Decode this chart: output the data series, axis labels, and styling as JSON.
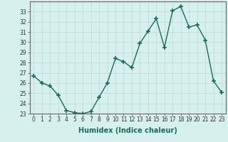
{
  "x": [
    0,
    1,
    2,
    3,
    4,
    5,
    6,
    7,
    8,
    9,
    10,
    11,
    12,
    13,
    14,
    15,
    16,
    17,
    18,
    19,
    20,
    21,
    22,
    23
  ],
  "y": [
    26.7,
    26.0,
    25.7,
    24.8,
    23.3,
    23.1,
    23.0,
    23.2,
    24.6,
    26.0,
    28.4,
    28.1,
    27.5,
    29.9,
    31.1,
    32.3,
    29.5,
    33.1,
    33.5,
    31.5,
    31.7,
    30.2,
    26.2,
    25.1
  ],
  "line_color": "#1a6b5a",
  "marker": "+",
  "marker_size": 4,
  "bg_color": "#d6f0ee",
  "grid_color": "#c0dbd8",
  "xlabel": "Humidex (Indice chaleur)",
  "ylim": [
    23,
    34
  ],
  "xlim": [
    -0.5,
    23.5
  ],
  "yticks": [
    23,
    24,
    25,
    26,
    27,
    28,
    29,
    30,
    31,
    32,
    33
  ],
  "xticks": [
    0,
    1,
    2,
    3,
    4,
    5,
    6,
    7,
    8,
    9,
    10,
    11,
    12,
    13,
    14,
    15,
    16,
    17,
    18,
    19,
    20,
    21,
    22,
    23
  ],
  "tick_fontsize": 5.5,
  "xlabel_fontsize": 7,
  "line_width": 1.0,
  "spine_color": "#666666"
}
